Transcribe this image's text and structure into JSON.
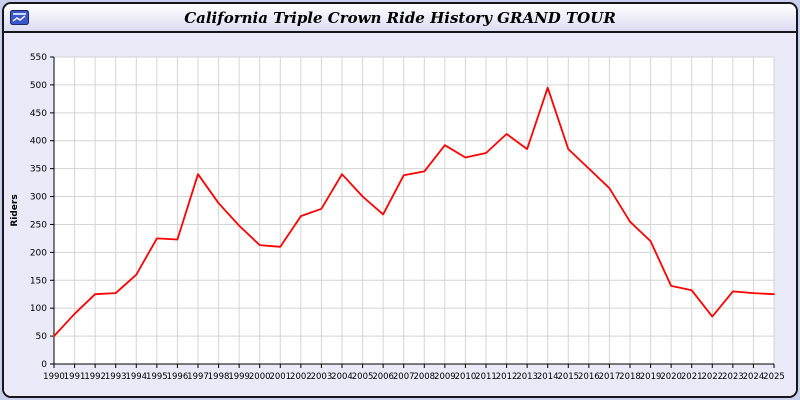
{
  "window": {
    "title": "California Triple Crown Ride History GRAND TOUR"
  },
  "colors": {
    "line": "#ff0000",
    "grid": "#d4d4d4",
    "plot_background": "#ffffff",
    "panel_background": "#e9e9f8",
    "axis": "#000000"
  },
  "chart_data": {
    "type": "line",
    "title": "California Triple Crown Ride History GRAND TOUR",
    "xlabel": "",
    "ylabel": "Riders",
    "ylim": [
      0,
      550
    ],
    "ytick_step": 50,
    "grid": true,
    "legend": "none",
    "x": [
      1990,
      1991,
      1992,
      1993,
      1994,
      1995,
      1996,
      1997,
      1998,
      1999,
      2000,
      2001,
      2002,
      2003,
      2004,
      2005,
      2006,
      2007,
      2008,
      2009,
      2010,
      2011,
      2012,
      2013,
      2014,
      2015,
      2016,
      2017,
      2018,
      2019,
      2020,
      2021,
      2022,
      2023,
      2024,
      2025
    ],
    "series": [
      {
        "name": "Riders",
        "color": "#ff0000",
        "values": [
          50,
          90,
          125,
          127,
          160,
          225,
          223,
          340,
          288,
          248,
          213,
          210,
          265,
          278,
          340,
          300,
          268,
          338,
          345,
          392,
          370,
          378,
          412,
          385,
          495,
          385,
          350,
          315,
          255,
          220,
          140,
          132,
          85,
          130,
          127,
          125
        ]
      }
    ]
  }
}
